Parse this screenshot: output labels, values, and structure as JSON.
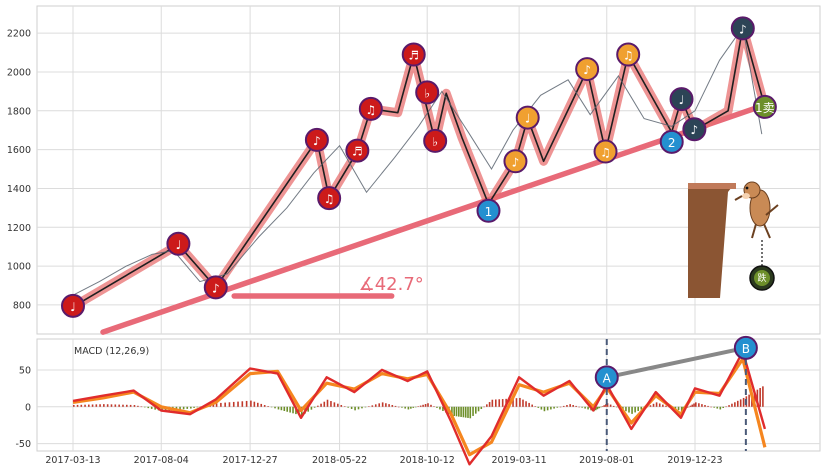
{
  "chart_data": [
    {
      "type": "line",
      "panel": "price",
      "ylim": [
        650,
        2340
      ],
      "y_ticks": [
        800,
        1000,
        1200,
        1400,
        1600,
        1800,
        2000,
        2200
      ],
      "x_tick_labels": [
        "2017-03-13",
        "2017-08-04",
        "2017-12-27",
        "2018-05-22",
        "2018-10-12",
        "2019-03-11",
        "2019-08-01",
        "2019-12-23"
      ],
      "grid": true,
      "series": [
        {
          "role": "price",
          "color": "#5a6470",
          "x": [
            "2017-03-13",
            "2017-04-25",
            "2017-06-08",
            "2017-07-20",
            "2017-08-24",
            "2017-10-06",
            "2017-11-20",
            "2018-01-10",
            "2018-02-25",
            "2018-04-10",
            "2018-05-22",
            "2018-07-05",
            "2018-08-20",
            "2018-09-28",
            "2018-11-05",
            "2018-12-18",
            "2019-01-25",
            "2019-03-01",
            "2019-04-15",
            "2019-05-30",
            "2019-07-05",
            "2019-08-20",
            "2019-10-01",
            "2019-11-15",
            "2019-12-23",
            "2020-02-01",
            "2020-03-10",
            "2020-04-10"
          ],
          "values": [
            850,
            920,
            1000,
            1060,
            1080,
            920,
            960,
            1150,
            1300,
            1480,
            1620,
            1380,
            1560,
            1720,
            1900,
            1690,
            1500,
            1700,
            1880,
            1960,
            1780,
            1980,
            1760,
            1720,
            1800,
            2060,
            2230,
            1680
          ]
        },
        {
          "role": "zigzag",
          "color": "#e87070",
          "x": [
            "2017-03-13",
            "2017-09-01",
            "2017-11-01",
            "2018-04-15",
            "2018-05-05",
            "2018-06-20",
            "2018-07-12",
            "2018-08-25",
            "2018-09-20",
            "2018-10-25",
            "2018-11-12",
            "2018-12-08",
            "2019-01-20",
            "2019-03-05",
            "2019-03-25",
            "2019-04-20",
            "2019-06-30",
            "2019-07-30",
            "2019-09-05",
            "2019-11-15",
            "2019-12-01",
            "2019-12-22",
            "2020-02-15",
            "2020-03-10",
            "2020-04-15"
          ],
          "values": [
            790,
            1110,
            890,
            1650,
            1350,
            1590,
            1810,
            1790,
            2090,
            1640,
            1890,
            1660,
            1320,
            1540,
            1760,
            1540,
            2010,
            1590,
            2090,
            1690,
            1860,
            1700,
            1800,
            2230,
            1820
          ]
        },
        {
          "role": "trendline",
          "color": "#e86a78",
          "x": [
            "2017-05-01",
            "2020-04-15"
          ],
          "values": [
            660,
            1830
          ]
        },
        {
          "role": "angle-reference",
          "color": "#e86a78",
          "x": [
            "2017-12-01",
            "2018-08-15"
          ],
          "values": [
            846,
            846
          ]
        }
      ],
      "markers": [
        {
          "x": "2017-03-13",
          "y": 795,
          "color": "#cc1a1a",
          "symbol": "♩"
        },
        {
          "x": "2017-09-01",
          "y": 1115,
          "color": "#cc1a1a",
          "symbol": "♩"
        },
        {
          "x": "2017-11-01",
          "y": 890,
          "color": "#cc1a1a",
          "symbol": "♪"
        },
        {
          "x": "2018-04-15",
          "y": 1650,
          "color": "#cc1a1a",
          "symbol": "♪"
        },
        {
          "x": "2018-05-05",
          "y": 1350,
          "color": "#cc1a1a",
          "symbol": "♫"
        },
        {
          "x": "2018-06-20",
          "y": 1595,
          "color": "#cc1a1a",
          "symbol": "♬"
        },
        {
          "x": "2018-07-12",
          "y": 1810,
          "color": "#cc1a1a",
          "symbol": "♫"
        },
        {
          "x": "2018-09-20",
          "y": 2090,
          "color": "#cc1a1a",
          "symbol": "♬"
        },
        {
          "x": "2018-10-12",
          "y": 1895,
          "color": "#cc1a1a",
          "symbol": "♭"
        },
        {
          "x": "2018-10-25",
          "y": 1645,
          "color": "#cc1a1a",
          "symbol": "♭"
        },
        {
          "x": "2019-01-20",
          "y": 1285,
          "color": "#2490d0",
          "symbol": "1"
        },
        {
          "x": "2019-03-05",
          "y": 1540,
          "color": "#f0a030",
          "symbol": "♪"
        },
        {
          "x": "2019-03-25",
          "y": 1765,
          "color": "#f0a030",
          "symbol": "♩"
        },
        {
          "x": "2019-06-30",
          "y": 2015,
          "color": "#f0a030",
          "symbol": "♪"
        },
        {
          "x": "2019-07-30",
          "y": 1590,
          "color": "#f0a030",
          "symbol": "♫"
        },
        {
          "x": "2019-09-05",
          "y": 2090,
          "color": "#f0a030",
          "symbol": "♫"
        },
        {
          "x": "2019-11-15",
          "y": 1640,
          "color": "#2490d0",
          "symbol": "2"
        },
        {
          "x": "2019-12-01",
          "y": 1860,
          "color": "#2c4456",
          "symbol": "♩"
        },
        {
          "x": "2019-12-22",
          "y": 1705,
          "color": "#2c4456",
          "symbol": "♪"
        },
        {
          "x": "2020-03-10",
          "y": 2225,
          "color": "#2c4456",
          "symbol": "♪"
        },
        {
          "x": "2020-04-15",
          "y": 1820,
          "color": "#6d8f2a",
          "symbol": "1卖"
        }
      ],
      "annotation_angle": "∡42.7°"
    },
    {
      "type": "line",
      "panel": "macd",
      "title": "MACD (12,26,9)",
      "ylim": [
        -60,
        92
      ],
      "y_ticks": [
        -50,
        0,
        50
      ],
      "grid": true,
      "series": [
        {
          "role": "fast",
          "color": "#e02c2c",
          "x": [
            "2017-03-13",
            "2017-05-01",
            "2017-06-20",
            "2017-08-04",
            "2017-09-20",
            "2017-11-01",
            "2017-12-27",
            "2018-02-10",
            "2018-03-20",
            "2018-05-01",
            "2018-06-15",
            "2018-07-30",
            "2018-09-10",
            "2018-10-12",
            "2018-11-20",
            "2018-12-20",
            "2019-01-25",
            "2019-03-11",
            "2019-04-20",
            "2019-06-01",
            "2019-07-10",
            "2019-08-01",
            "2019-09-10",
            "2019-10-20",
            "2019-11-30",
            "2019-12-23",
            "2020-02-01",
            "2020-03-10",
            "2020-04-15"
          ],
          "values": [
            8,
            15,
            22,
            -5,
            -10,
            10,
            52,
            45,
            -15,
            40,
            20,
            50,
            35,
            48,
            -20,
            -78,
            -40,
            40,
            15,
            35,
            -5,
            30,
            -30,
            20,
            -15,
            25,
            15,
            75,
            -30
          ]
        },
        {
          "role": "signal",
          "color": "#f5861f",
          "x": [
            "2017-03-13",
            "2017-05-01",
            "2017-06-20",
            "2017-08-04",
            "2017-09-20",
            "2017-11-01",
            "2017-12-27",
            "2018-02-10",
            "2018-03-20",
            "2018-05-01",
            "2018-06-15",
            "2018-07-30",
            "2018-09-10",
            "2018-10-12",
            "2018-11-20",
            "2018-12-20",
            "2019-01-25",
            "2019-03-11",
            "2019-04-20",
            "2019-06-01",
            "2019-07-10",
            "2019-08-01",
            "2019-09-10",
            "2019-10-20",
            "2019-11-30",
            "2019-12-23",
            "2020-02-01",
            "2020-03-10",
            "2020-04-15"
          ],
          "values": [
            6,
            12,
            20,
            0,
            -8,
            6,
            45,
            48,
            -5,
            32,
            24,
            45,
            38,
            44,
            -10,
            -65,
            -48,
            30,
            20,
            32,
            0,
            26,
            -22,
            15,
            -10,
            20,
            18,
            65,
            -55
          ]
        }
      ],
      "divergence": {
        "from": {
          "x": "2019-08-01",
          "y": 40,
          "label": "A"
        },
        "to": {
          "x": "2020-03-15",
          "y": 80,
          "label": "B"
        },
        "color": "#888888"
      },
      "vlines": [
        "2019-08-01",
        "2020-03-15"
      ]
    }
  ]
}
